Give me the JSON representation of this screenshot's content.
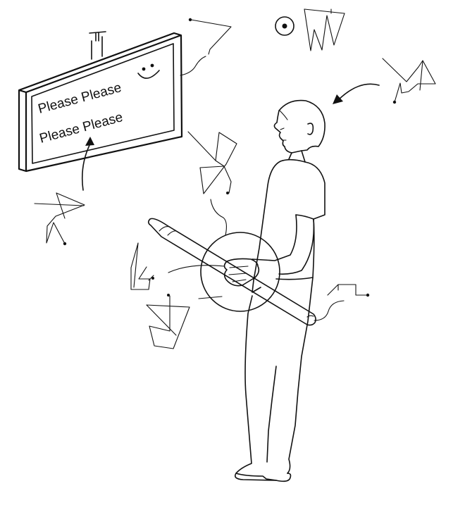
{
  "sign": {
    "line1": "Please Please",
    "line2": "Please Please"
  },
  "colors": {
    "ink": "#111111",
    "paper": "#ffffff"
  },
  "icons": [
    "smiley-icon",
    "bullseye-icon",
    "arrow-icon",
    "squiggle-glyph-icon"
  ]
}
